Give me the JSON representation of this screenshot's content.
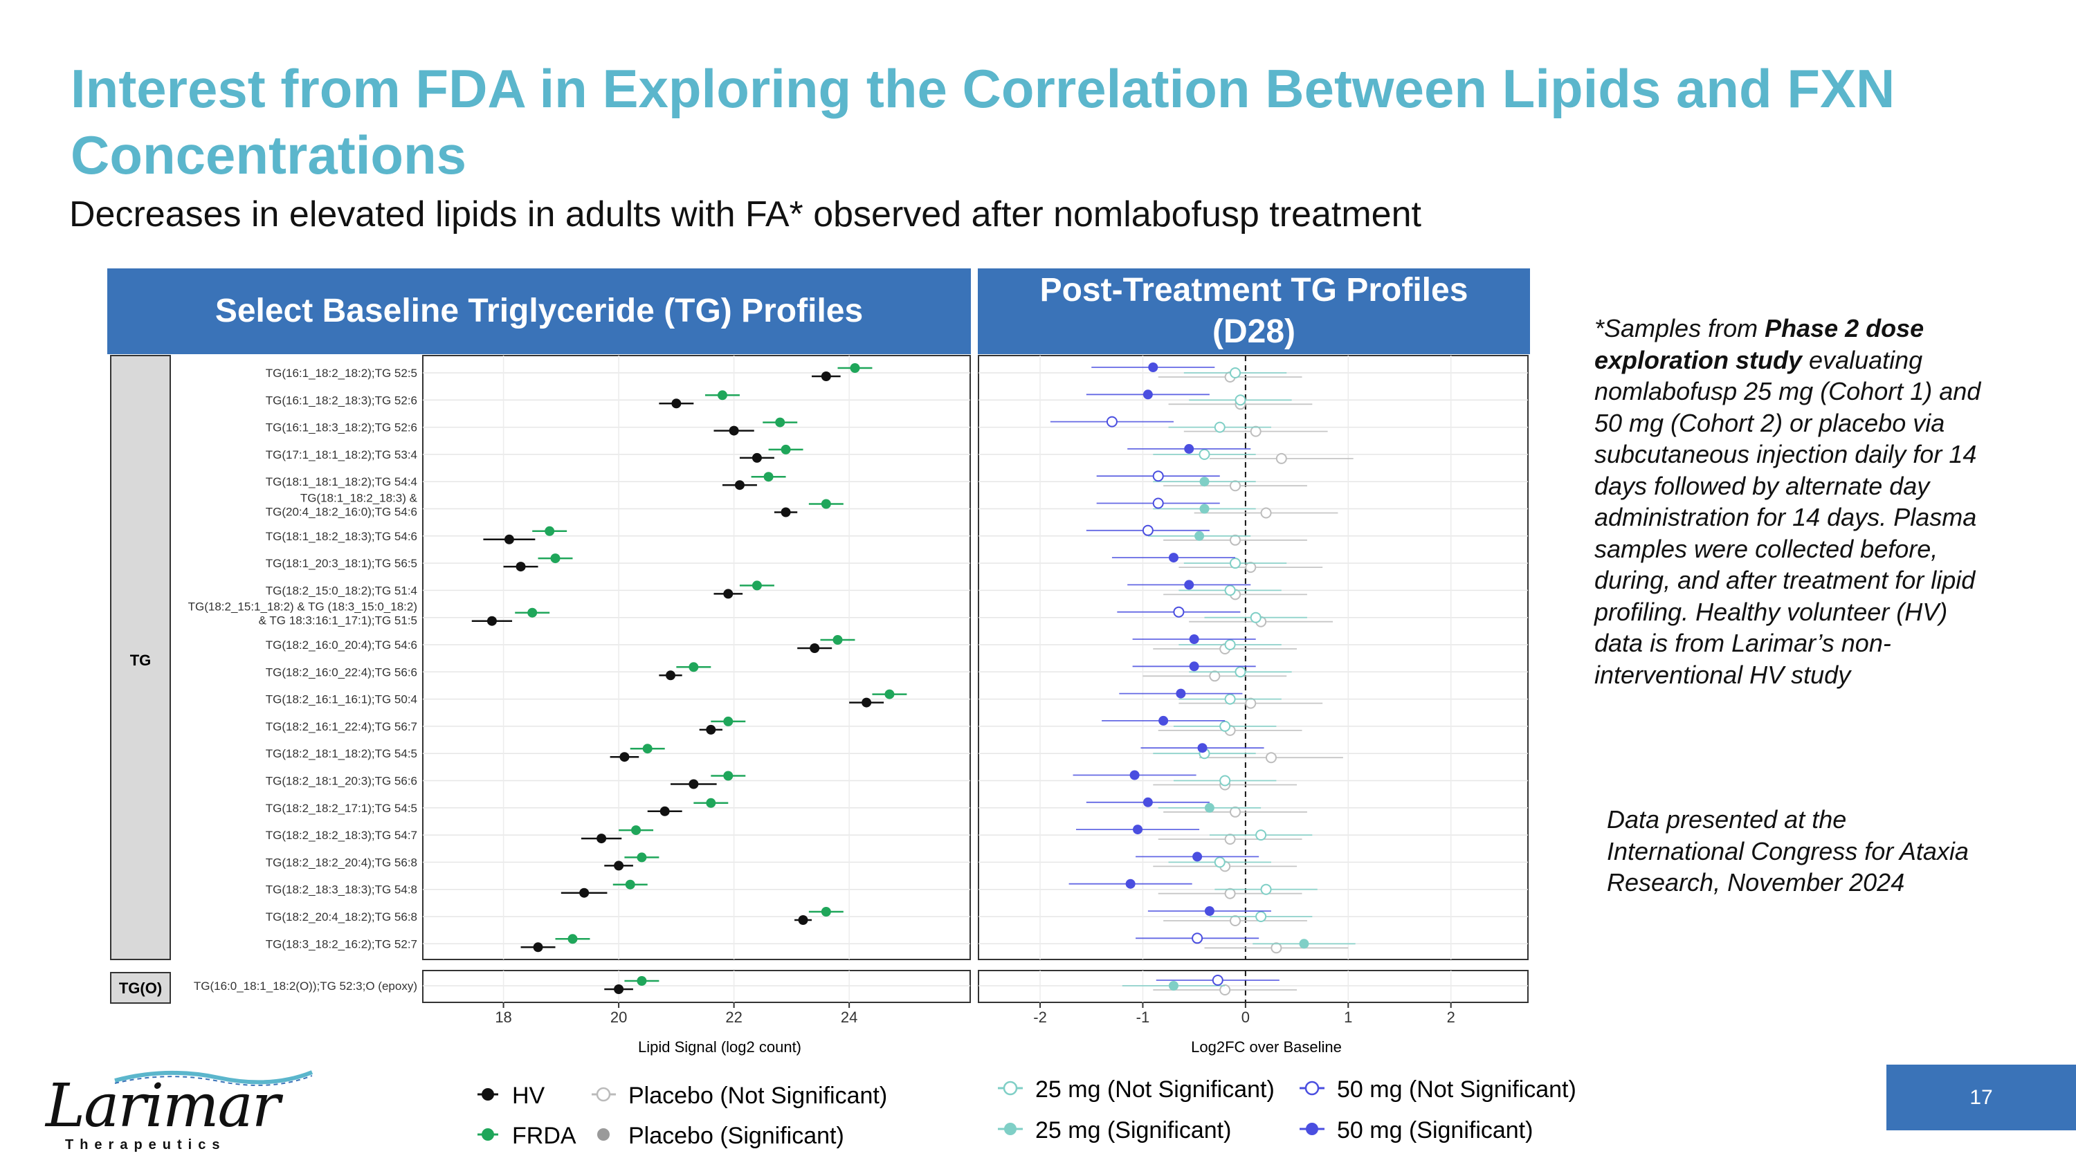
{
  "header": {
    "title": "Interest from FDA in Exploring the Correlation Between Lipids and FXN Concentrations",
    "subtitle": "Decreases in elevated lipids in adults with FA* observed after nomlabofusp treatment"
  },
  "panels": {
    "left_title": "Select Baseline Triglyceride (TG) Profiles",
    "right_title": "Post-Treatment TG Profiles (D28)"
  },
  "notes": {
    "samples_prefix": "*Samples from ",
    "samples_bold": "Phase 2 dose exploration study",
    "samples_rest": " evaluating nomlabofusp 25 mg (Cohort 1) and 50 mg (Cohort 2) or placebo via subcutaneous injection daily for 14 days followed by alternate day administration for 14 days. Plasma samples were collected before, during, and after treatment for lipid profiling. Healthy volunteer (HV) data is from Larimar’s non-interventional HV study",
    "presented": "Data presented at the International Congress for Ataxia Research, November 2024"
  },
  "logo": {
    "word": "Larimar",
    "sub": "Therapeutics"
  },
  "page_number": "17",
  "colors": {
    "title": "#5bb6cc",
    "header_bar": "#3a73b8",
    "hv": "#111111",
    "frda": "#1fa65a",
    "placebo": "#9a9a9a",
    "mg25": "#7fcfc6",
    "mg50": "#4a4ee0"
  },
  "chart_data": [
    {
      "type": "scatter",
      "description_type": "forest",
      "xlabel": "Lipid Signal (log2 count)",
      "xlim": [
        16.6,
        26.1
      ],
      "xticks": [
        18,
        20,
        22,
        24
      ],
      "facets": [
        "TG",
        "TG(O)"
      ],
      "series": [
        {
          "name": "HV",
          "color": "#111111",
          "values": [
            23.6,
            21.0,
            22.0,
            22.4,
            22.1,
            22.9,
            18.1,
            18.3,
            21.9,
            17.8,
            23.4,
            20.9,
            24.3,
            21.6,
            20.1,
            21.3,
            20.8,
            19.7,
            20.0,
            19.4,
            23.2,
            18.6,
            20.0
          ],
          "ci_half": [
            0.25,
            0.3,
            0.35,
            0.3,
            0.3,
            0.2,
            0.45,
            0.3,
            0.25,
            0.35,
            0.3,
            0.2,
            0.3,
            0.2,
            0.25,
            0.4,
            0.3,
            0.35,
            0.25,
            0.4,
            0.15,
            0.3,
            0.25
          ]
        },
        {
          "name": "FRDA",
          "color": "#1fa65a",
          "values": [
            24.1,
            21.8,
            22.8,
            22.9,
            22.6,
            23.6,
            18.8,
            18.9,
            22.4,
            18.5,
            23.8,
            21.3,
            24.7,
            21.9,
            20.5,
            21.9,
            21.6,
            20.3,
            20.4,
            20.2,
            23.6,
            19.2,
            20.4
          ]
        }
      ],
      "categories": [
        "TG(16:1_18:2_18:2);TG 52:5",
        "TG(16:1_18:2_18:3);TG 52:6",
        "TG(16:1_18:3_18:2);TG 52:6",
        "TG(17:1_18:1_18:2);TG 53:4",
        "TG(18:1_18:1_18:2);TG 54:4",
        [
          "TG(18:1_18:2_18:3) &",
          "TG(20:4_18:2_16:0);TG 54:6"
        ],
        "TG(18:1_18:2_18:3);TG 54:6",
        "TG(18:1_20:3_18:1);TG 56:5",
        "TG(18:2_15:0_18:2);TG 51:4",
        [
          "TG(18:2_15:1_18:2) & TG (18:3_15:0_18:2)",
          "& TG 18:3:16:1_17:1);TG 51:5"
        ],
        "TG(18:2_16:0_20:4);TG 54:6",
        "TG(18:2_16:0_22:4);TG 56:6",
        "TG(18:2_16:1_16:1);TG 50:4",
        "TG(18:2_16:1_22:4);TG 56:7",
        "TG(18:2_18:1_18:2);TG 54:5",
        "TG(18:2_18:1_20:3);TG 56:6",
        "TG(18:2_18:2_17:1);TG 54:5",
        "TG(18:2_18:2_18:3);TG 54:7",
        "TG(18:2_18:2_20:4);TG 56:8",
        "TG(18:2_18:3_18:3);TG 54:8",
        "TG(18:2_20:4_18:2);TG 56:8",
        "TG(18:3_18:2_16:2);TG 52:7",
        "TG(16:0_18:1_18:2(O));TG 52:3;O (epoxy)"
      ]
    },
    {
      "type": "scatter",
      "description_type": "forest",
      "xlabel": "Log2FC over Baseline",
      "xlim": [
        -2.6,
        2.75
      ],
      "xticks": [
        -2,
        -1,
        0,
        1,
        2
      ],
      "reference_line": 0,
      "series": [
        {
          "name": "Placebo",
          "color": "#9a9a9a",
          "values": [
            -0.15,
            -0.05,
            0.1,
            0.35,
            -0.1,
            0.2,
            -0.1,
            0.05,
            -0.1,
            0.15,
            -0.2,
            -0.3,
            0.05,
            -0.15,
            0.25,
            -0.2,
            -0.1,
            -0.15,
            -0.2,
            -0.15,
            -0.1,
            0.3,
            -0.2
          ],
          "significant": [
            false,
            false,
            false,
            false,
            false,
            false,
            false,
            false,
            false,
            false,
            false,
            false,
            false,
            false,
            false,
            false,
            false,
            false,
            false,
            false,
            false,
            false,
            false
          ]
        },
        {
          "name": "25 mg",
          "color": "#7fcfc6",
          "values": [
            -0.1,
            -0.05,
            -0.25,
            -0.4,
            -0.4,
            -0.4,
            -0.45,
            -0.1,
            -0.15,
            0.1,
            -0.15,
            -0.05,
            -0.15,
            -0.2,
            -0.4,
            -0.2,
            -0.35,
            0.15,
            -0.25,
            0.2,
            0.15,
            0.57,
            -0.7
          ],
          "significant": [
            false,
            false,
            false,
            false,
            true,
            true,
            true,
            false,
            false,
            false,
            false,
            false,
            false,
            false,
            false,
            false,
            true,
            false,
            false,
            false,
            false,
            true,
            true
          ]
        },
        {
          "name": "50 mg",
          "color": "#4a4ee0",
          "values": [
            -0.9,
            -0.95,
            -1.3,
            -0.55,
            -0.85,
            -0.85,
            -0.95,
            -0.7,
            -0.55,
            -0.65,
            -0.5,
            -0.5,
            -0.63,
            -0.8,
            -0.42,
            -1.08,
            -0.95,
            -1.05,
            -0.47,
            -1.12,
            -0.35,
            -0.47,
            -0.27
          ],
          "significant": [
            true,
            true,
            false,
            true,
            false,
            false,
            false,
            true,
            true,
            false,
            true,
            true,
            true,
            true,
            true,
            true,
            true,
            true,
            true,
            true,
            true,
            false,
            false
          ]
        }
      ]
    }
  ],
  "legend": {
    "hv": "HV",
    "frda": "FRDA",
    "placebo_ns": "Placebo (Not Significant)",
    "placebo_s": "Placebo (Significant)",
    "mg25_ns": "25 mg (Not Significant)",
    "mg25_s": "25 mg (Significant)",
    "mg50_ns": "50 mg (Not Significant)",
    "mg50_s": "50 mg (Significant)"
  }
}
